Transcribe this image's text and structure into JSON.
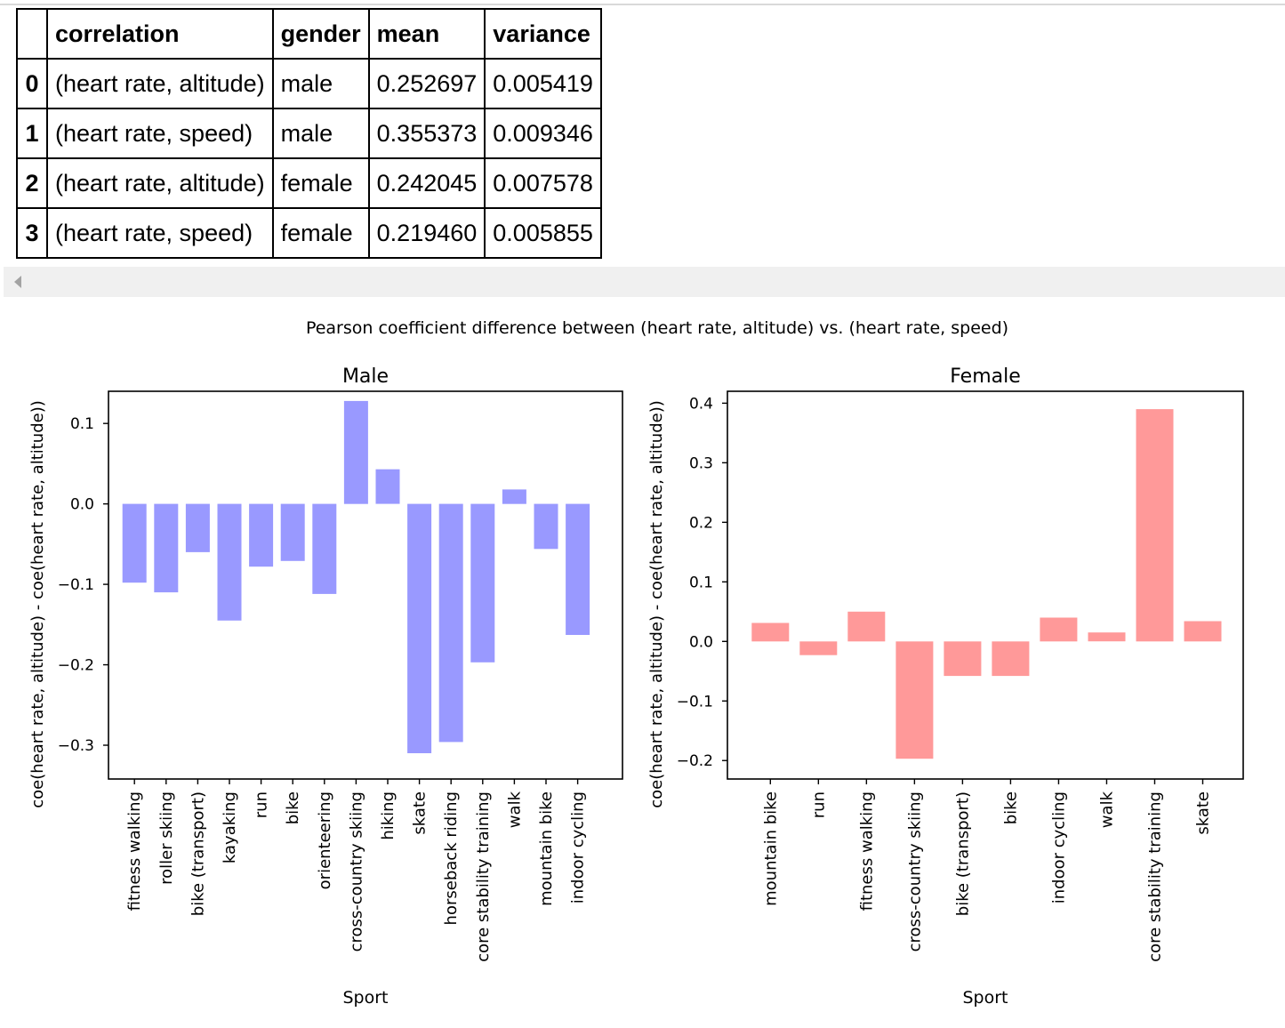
{
  "table": {
    "headers": [
      "",
      "correlation",
      "gender",
      "mean",
      "variance"
    ],
    "rows": [
      {
        "index": "0",
        "correlation": "(heart rate, altitude)",
        "gender": "male",
        "mean": "0.252697",
        "variance": "0.005419"
      },
      {
        "index": "1",
        "correlation": "(heart rate, speed)",
        "gender": "male",
        "mean": "0.355373",
        "variance": "0.009346"
      },
      {
        "index": "2",
        "correlation": "(heart rate, altitude)",
        "gender": "female",
        "mean": "0.242045",
        "variance": "0.007578"
      },
      {
        "index": "3",
        "correlation": "(heart rate, speed)",
        "gender": "female",
        "mean": "0.219460",
        "variance": "0.005855"
      }
    ]
  },
  "chart_data": {
    "suptitle": "Pearson coefficient difference between (heart rate, altitude) vs. (heart rate, speed)",
    "charts": [
      {
        "type": "bar",
        "title": "Male",
        "xlabel": "Sport",
        "ylabel": "coe(heart rate, altitude) - coe(heart rate, altitude))",
        "color": "#9999ff",
        "ylim": [
          -0.342,
          0.14
        ],
        "yticks": [
          0.1,
          0.0,
          -0.1,
          -0.2,
          -0.3
        ],
        "ytick_labels": [
          "0.1",
          "0.0",
          "−0.1",
          "−0.2",
          "−0.3"
        ],
        "categories": [
          "fitness walking",
          "roller skiing",
          "bike (transport)",
          "kayaking",
          "run",
          "bike",
          "orienteering",
          "cross-country skiing",
          "hiking",
          "skate",
          "horseback riding",
          "core stability training",
          "walk",
          "mountain bike",
          "indoor cycling"
        ],
        "values": [
          -0.098,
          -0.11,
          -0.06,
          -0.145,
          -0.078,
          -0.071,
          -0.112,
          0.128,
          0.043,
          -0.31,
          -0.296,
          -0.197,
          0.018,
          -0.056,
          -0.163
        ]
      },
      {
        "type": "bar",
        "title": "Female",
        "xlabel": "Sport",
        "ylabel": "coe(heart rate, altitude) - coe(heart rate, altitude))",
        "color": "#ff9999",
        "ylim": [
          -0.231,
          0.42
        ],
        "yticks": [
          0.4,
          0.3,
          0.2,
          0.1,
          0.0,
          -0.1,
          -0.2
        ],
        "ytick_labels": [
          "0.4",
          "0.3",
          "0.2",
          "0.1",
          "0.0",
          "−0.1",
          "−0.2"
        ],
        "categories": [
          "mountain bike",
          "run",
          "fitness walking",
          "cross-country skiing",
          "bike (transport)",
          "bike",
          "indoor cycling",
          "walk",
          "core stability training",
          "skate"
        ],
        "values": [
          0.031,
          -0.023,
          0.05,
          -0.197,
          -0.058,
          -0.058,
          0.04,
          0.015,
          0.39,
          0.034
        ]
      }
    ]
  }
}
